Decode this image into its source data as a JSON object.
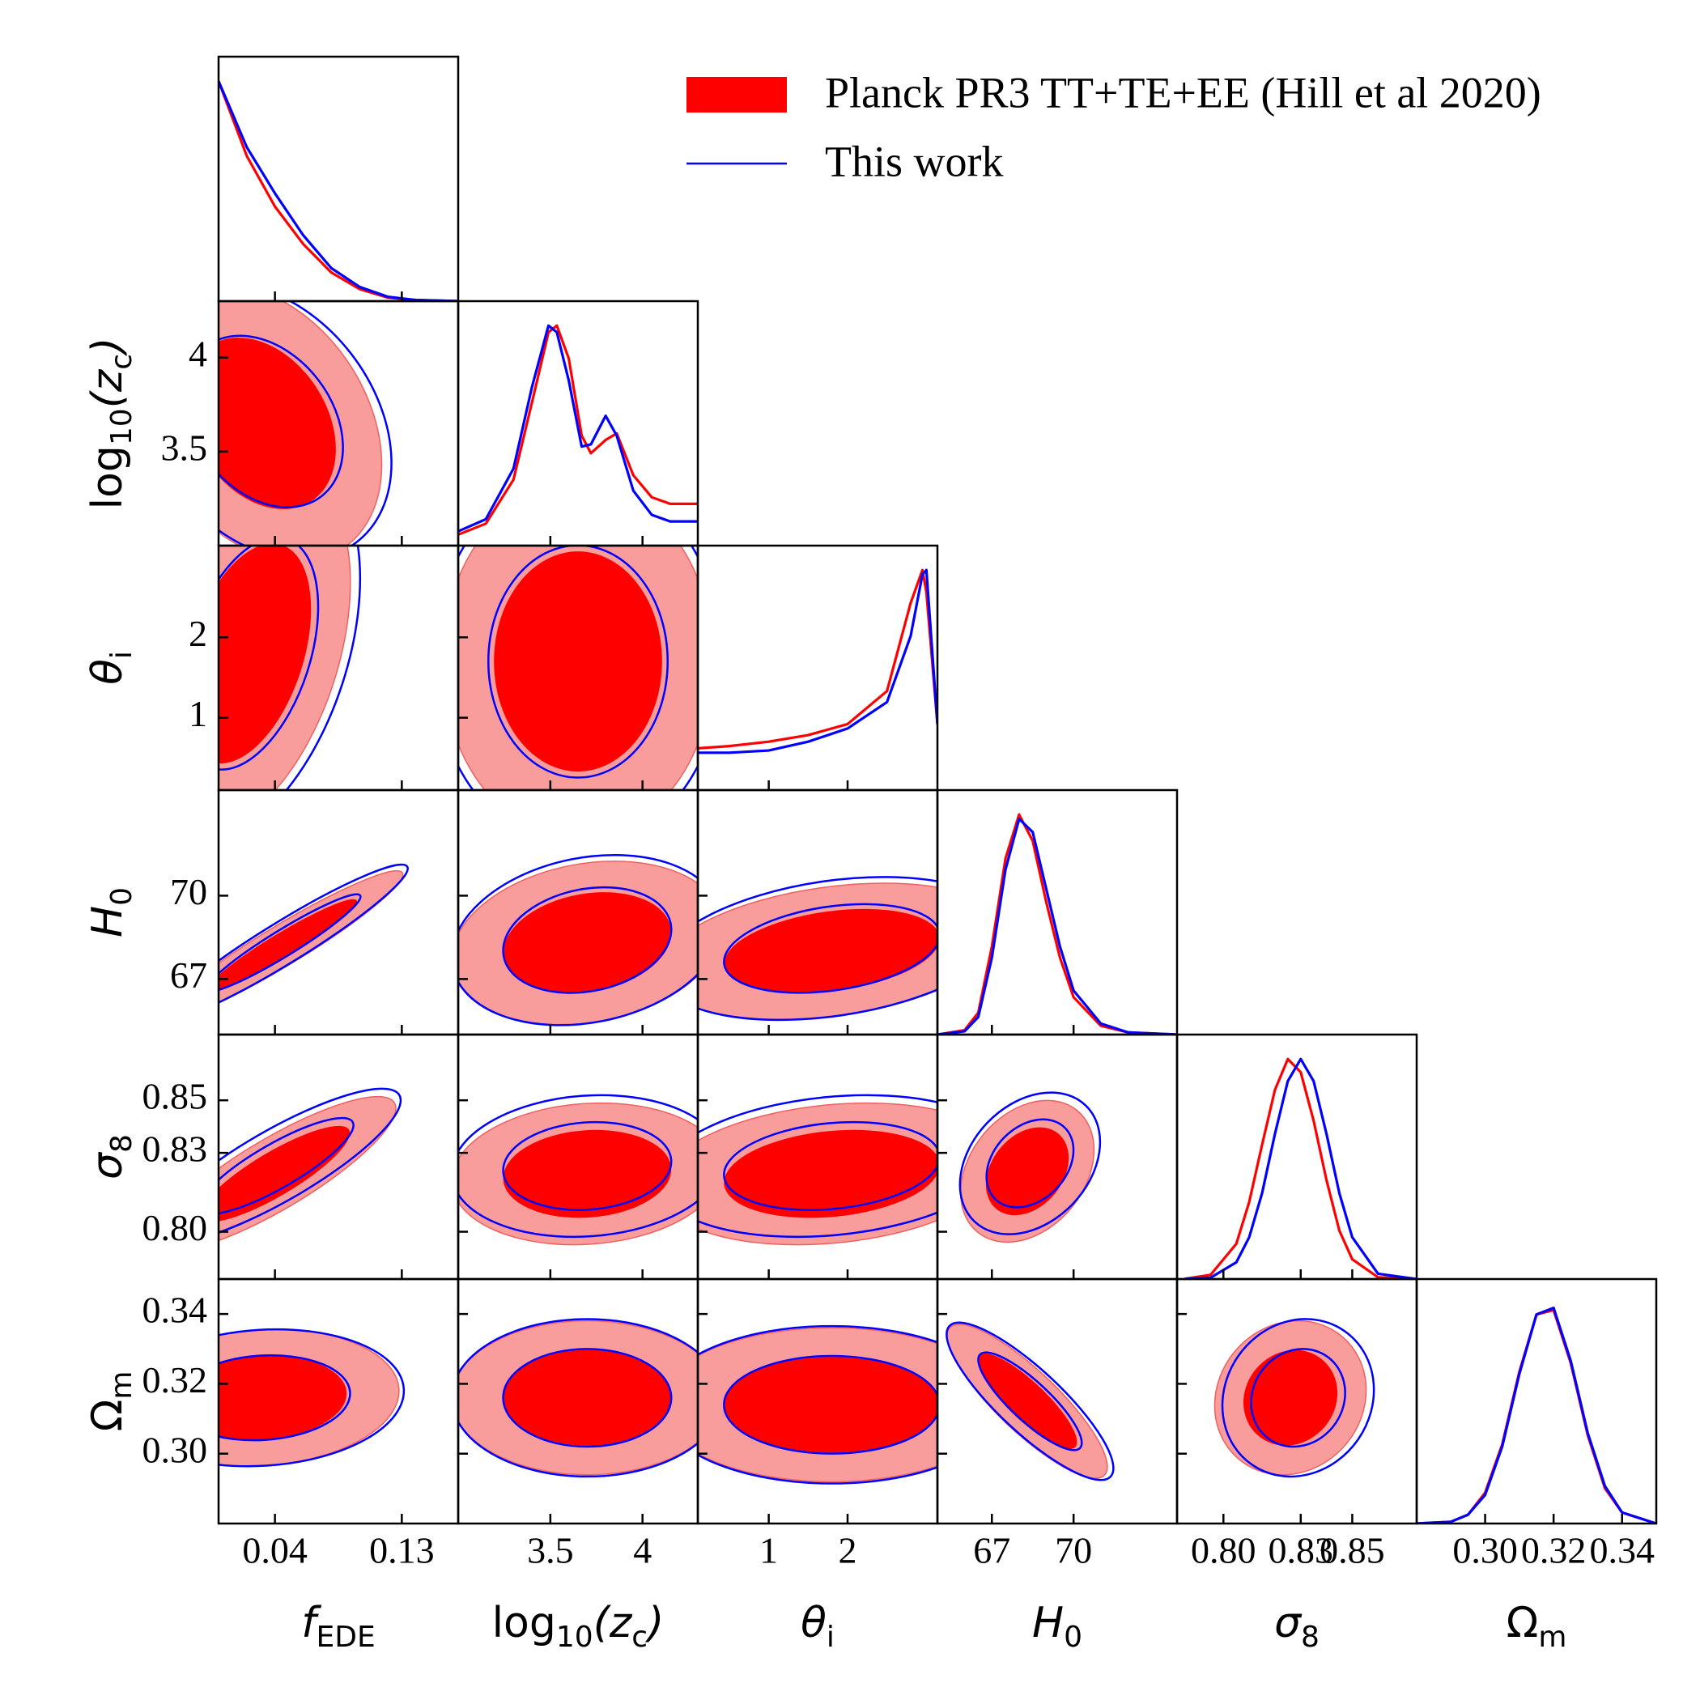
{
  "chart_data": {
    "type": "corner",
    "series": [
      {
        "name": "Planck PR3 TT+TE+EE (Hill et al 2020)",
        "color": "#ff0000",
        "fill_colors": [
          "#ff0000",
          "#f89c9c"
        ]
      },
      {
        "name": "This work",
        "color": "#0000ff"
      }
    ],
    "params": [
      {
        "label": [
          "f",
          "EDE"
        ],
        "lim": [
          0,
          0.17
        ],
        "ticks": [
          0.04,
          0.13
        ]
      },
      {
        "label": [
          "log",
          "10",
          "(z",
          "c",
          ")"
        ],
        "lim": [
          3.0,
          4.3
        ],
        "ticks": [
          3.5,
          4.0
        ]
      },
      {
        "label": [
          "θ",
          "i"
        ],
        "lim": [
          0.1,
          3.14
        ],
        "ticks": [
          1,
          2
        ]
      },
      {
        "label": [
          "H",
          "0"
        ],
        "lim": [
          65,
          73.8
        ],
        "ticks": [
          67,
          70
        ]
      },
      {
        "label": [
          "σ",
          "8"
        ],
        "lim": [
          0.782,
          0.875
        ],
        "ticks": [
          {
            "value": 0.8,
            "label": "0.80"
          },
          0.83,
          0.85
        ]
      },
      {
        "label": [
          "Ω",
          "m"
        ],
        "lim": [
          0.28,
          0.35
        ],
        "ticks": [
          {
            "value": 0.3,
            "label": "0.30"
          },
          0.32,
          0.34
        ]
      }
    ],
    "marginals": [
      {
        "x": [
          0,
          0.02,
          0.04,
          0.06,
          0.08,
          0.1,
          0.12,
          0.14,
          0.17
        ],
        "series": [
          [
            1,
            0.66,
            0.43,
            0.26,
            0.13,
            0.055,
            0.016,
            0.005,
            0
          ],
          [
            1,
            0.7,
            0.49,
            0.3,
            0.15,
            0.065,
            0.02,
            0.005,
            0
          ]
        ]
      },
      {
        "x": [
          3.0,
          3.15,
          3.3,
          3.4,
          3.49,
          3.535,
          3.6,
          3.67,
          3.72,
          3.8,
          3.86,
          3.95,
          4.05,
          4.15,
          4.3
        ],
        "series": [
          [
            0.05,
            0.1,
            0.3,
            0.65,
            0.97,
            1,
            0.85,
            0.5,
            0.42,
            0.48,
            0.51,
            0.32,
            0.22,
            0.19,
            0.19
          ],
          [
            0.065,
            0.12,
            0.35,
            0.72,
            1,
            0.97,
            0.75,
            0.45,
            0.46,
            0.59,
            0.5,
            0.25,
            0.14,
            0.11,
            0.11
          ]
        ]
      },
      {
        "x": [
          0.1,
          0.5,
          1,
          1.5,
          2,
          2.5,
          2.8,
          2.95,
          3.0,
          3.14
        ],
        "series": [
          [
            0.19,
            0.2,
            0.22,
            0.25,
            0.3,
            0.45,
            0.85,
            1,
            0.9,
            0.3
          ],
          [
            0.17,
            0.17,
            0.18,
            0.22,
            0.28,
            0.4,
            0.7,
            0.98,
            1,
            0.3
          ]
        ]
      },
      {
        "x": [
          65,
          66,
          66.5,
          67,
          67.5,
          68,
          68.5,
          69,
          69.5,
          70,
          71,
          72,
          73.8
        ],
        "series": [
          [
            0,
            0.02,
            0.1,
            0.4,
            0.8,
            1,
            0.88,
            0.6,
            0.35,
            0.17,
            0.04,
            0.01,
            0
          ],
          [
            0,
            0.015,
            0.08,
            0.35,
            0.75,
            0.98,
            0.92,
            0.66,
            0.4,
            0.2,
            0.05,
            0.01,
            0
          ]
        ]
      },
      {
        "x": [
          0.785,
          0.795,
          0.805,
          0.81,
          0.815,
          0.82,
          0.825,
          0.83,
          0.835,
          0.84,
          0.845,
          0.85,
          0.86,
          0.875
        ],
        "series": [
          [
            0.001,
            0.019,
            0.16,
            0.35,
            0.61,
            0.86,
            1,
            0.94,
            0.72,
            0.45,
            0.22,
            0.09,
            0.008,
            0
          ],
          [
            0,
            0.006,
            0.076,
            0.19,
            0.39,
            0.66,
            0.9,
            1,
            0.9,
            0.66,
            0.39,
            0.19,
            0.024,
            0
          ]
        ]
      },
      {
        "x": [
          0.28,
          0.29,
          0.295,
          0.3,
          0.305,
          0.31,
          0.315,
          0.32,
          0.325,
          0.33,
          0.335,
          0.34,
          0.35
        ],
        "series": [
          [
            0,
            0.008,
            0.04,
            0.14,
            0.36,
            0.69,
            0.95,
            0.97,
            0.73,
            0.4,
            0.16,
            0.05,
            0
          ],
          [
            0,
            0.008,
            0.04,
            0.13,
            0.35,
            0.68,
            0.95,
            0.98,
            0.74,
            0.41,
            0.17,
            0.05,
            0
          ]
        ]
      }
    ],
    "pairs": [
      {
        "x": 0,
        "y": 1,
        "series": [
          {
            "center": [
              0.03,
              3.65
            ],
            "sd": [
              0.035,
              0.3
            ],
            "corr": -0.3
          },
          {
            "center": [
              0.032,
              3.66
            ],
            "sd": [
              0.037,
              0.3
            ],
            "corr": -0.3
          }
        ]
      },
      {
        "x": 0,
        "y": 2,
        "series": [
          {
            "center": [
              0.02,
              1.8
            ],
            "sd": [
              0.03,
              0.9
            ],
            "corr": 0.4
          },
          {
            "center": [
              0.022,
              1.8
            ],
            "sd": [
              0.032,
              0.95
            ],
            "corr": 0.4
          }
        ]
      },
      {
        "x": 0,
        "y": 3,
        "series": [
          {
            "center": [
              0.045,
              68.2
            ],
            "sd": [
              0.035,
              1.1
            ],
            "corr": 0.95
          },
          {
            "center": [
              0.046,
              68.3
            ],
            "sd": [
              0.036,
              1.15
            ],
            "corr": 0.95
          }
        ]
      },
      {
        "x": 0,
        "y": 4,
        "series": [
          {
            "center": [
              0.04,
              0.822
            ],
            "sd": [
              0.035,
              0.012
            ],
            "corr": 0.85
          },
          {
            "center": [
              0.041,
              0.825
            ],
            "sd": [
              0.036,
              0.012
            ],
            "corr": 0.85
          }
        ]
      },
      {
        "x": 0,
        "y": 5,
        "series": [
          {
            "center": [
              0.03,
              0.316
            ],
            "sd": [
              0.04,
              0.008
            ],
            "corr": 0.1
          },
          {
            "center": [
              0.031,
              0.316
            ],
            "sd": [
              0.041,
              0.008
            ],
            "corr": 0.1
          }
        ]
      },
      {
        "x": 1,
        "y": 2,
        "series": [
          {
            "center": [
              3.65,
              1.7
            ],
            "sd": [
              0.3,
              0.9
            ],
            "corr": 0
          },
          {
            "center": [
              3.65,
              1.7
            ],
            "sd": [
              0.32,
              0.95
            ],
            "corr": 0
          }
        ]
      },
      {
        "x": 1,
        "y": 3,
        "series": [
          {
            "center": [
              3.7,
              68.3
            ],
            "sd": [
              0.3,
              1.2
            ],
            "corr": 0.2
          },
          {
            "center": [
              3.7,
              68.4
            ],
            "sd": [
              0.3,
              1.25
            ],
            "corr": 0.2
          }
        ]
      },
      {
        "x": 1,
        "y": 4,
        "series": [
          {
            "center": [
              3.7,
              0.822
            ],
            "sd": [
              0.3,
              0.011
            ],
            "corr": 0.1
          },
          {
            "center": [
              3.7,
              0.825
            ],
            "sd": [
              0.3,
              0.011
            ],
            "corr": 0.1
          }
        ]
      },
      {
        "x": 1,
        "y": 5,
        "series": [
          {
            "center": [
              3.7,
              0.316
            ],
            "sd": [
              0.3,
              0.009
            ],
            "corr": 0
          },
          {
            "center": [
              3.7,
              0.316
            ],
            "sd": [
              0.3,
              0.0092
            ],
            "corr": 0
          }
        ]
      },
      {
        "x": 2,
        "y": 3,
        "series": [
          {
            "center": [
              1.8,
              68
            ],
            "sd": [
              0.9,
              1.0
            ],
            "corr": 0.3
          },
          {
            "center": [
              1.8,
              68.1
            ],
            "sd": [
              0.9,
              1.05
            ],
            "corr": 0.3
          }
        ]
      },
      {
        "x": 2,
        "y": 4,
        "series": [
          {
            "center": [
              1.8,
              0.822
            ],
            "sd": [
              0.9,
              0.011
            ],
            "corr": 0.2
          },
          {
            "center": [
              1.8,
              0.825
            ],
            "sd": [
              0.9,
              0.011
            ],
            "corr": 0.2
          }
        ]
      },
      {
        "x": 2,
        "y": 5,
        "series": [
          {
            "center": [
              1.8,
              0.314
            ],
            "sd": [
              0.9,
              0.009
            ],
            "corr": 0
          },
          {
            "center": [
              1.8,
              0.314
            ],
            "sd": [
              0.9,
              0.0092
            ],
            "corr": 0
          }
        ]
      },
      {
        "x": 3,
        "y": 4,
        "series": [
          {
            "center": [
              68.3,
              0.823
            ],
            "sd": [
              1.0,
              0.011
            ],
            "corr": 0.3
          },
          {
            "center": [
              68.4,
              0.826
            ],
            "sd": [
              1.05,
              0.011
            ],
            "corr": 0.3
          }
        ]
      },
      {
        "x": 3,
        "y": 5,
        "series": [
          {
            "center": [
              68.3,
              0.315
            ],
            "sd": [
              1.2,
              0.009
            ],
            "corr": -0.85
          },
          {
            "center": [
              68.4,
              0.315
            ],
            "sd": [
              1.25,
              0.0092
            ],
            "corr": -0.85
          }
        ]
      },
      {
        "x": 4,
        "y": 5,
        "series": [
          {
            "center": [
              0.826,
              0.316
            ],
            "sd": [
              0.012,
              0.009
            ],
            "corr": 0.1
          },
          {
            "center": [
              0.829,
              0.316
            ],
            "sd": [
              0.012,
              0.0092
            ],
            "corr": 0.1
          }
        ]
      }
    ]
  }
}
